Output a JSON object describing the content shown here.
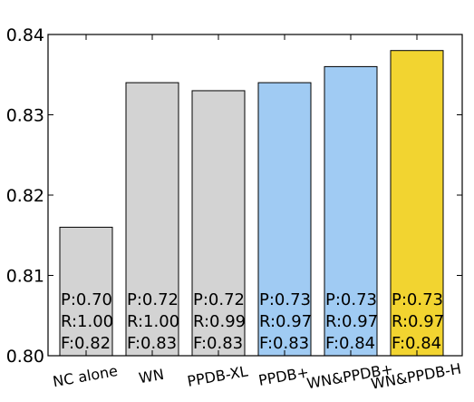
{
  "chart_data": {
    "type": "bar",
    "title": "",
    "xlabel": "",
    "ylabel": "",
    "ylim": [
      0.8,
      0.84
    ],
    "yticks": [
      "0.80",
      "0.81",
      "0.82",
      "0.83",
      "0.84"
    ],
    "grid": false,
    "categories": [
      "NC alone",
      "WN",
      "PPDB-XL",
      "PPDB+",
      "WN&PPDB+",
      "WN&PPDB-H"
    ],
    "values": [
      0.816,
      0.834,
      0.833,
      0.834,
      0.836,
      0.838
    ],
    "bar_colors": [
      "#d3d3d3",
      "#d3d3d3",
      "#d3d3d3",
      "#a0cbf3",
      "#a0cbf3",
      "#f2d430"
    ],
    "annotations": [
      [
        "P:0.70",
        "R:1.00",
        "F:0.82"
      ],
      [
        "P:0.72",
        "R:1.00",
        "F:0.83"
      ],
      [
        "P:0.72",
        "R:0.99",
        "F:0.83"
      ],
      [
        "P:0.73",
        "R:0.97",
        "F:0.83"
      ],
      [
        "P:0.73",
        "R:0.97",
        "F:0.84"
      ],
      [
        "P:0.73",
        "R:0.97",
        "F:0.84"
      ]
    ]
  }
}
